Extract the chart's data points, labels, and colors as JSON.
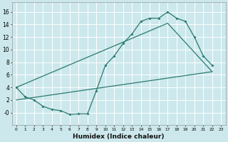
{
  "xlabel": "Humidex (Indice chaleur)",
  "bg_color": "#cce8ec",
  "grid_color": "#ffffff",
  "line_color": "#2a7a6e",
  "xlim": [
    -0.5,
    23.5
  ],
  "ylim": [
    -2.0,
    17.5
  ],
  "xticks": [
    0,
    1,
    2,
    3,
    4,
    5,
    6,
    7,
    8,
    9,
    10,
    11,
    12,
    13,
    14,
    15,
    16,
    17,
    18,
    19,
    20,
    21,
    22,
    23
  ],
  "yticks": [
    0,
    2,
    4,
    6,
    8,
    10,
    12,
    14,
    16
  ],
  "ytick_labels": [
    "-0",
    "2",
    "4",
    "6",
    "8",
    "10",
    "12",
    "14",
    "16"
  ],
  "line1_x": [
    0,
    1,
    2,
    3,
    4,
    5,
    6,
    7,
    8,
    9,
    10,
    11,
    12,
    13,
    14,
    15,
    16,
    17,
    18,
    19,
    20,
    21,
    22
  ],
  "line1_y": [
    4.0,
    2.5,
    2.0,
    1.0,
    0.5,
    0.3,
    -0.3,
    -0.2,
    -0.2,
    3.5,
    7.5,
    9.0,
    11.0,
    12.5,
    14.5,
    15.0,
    15.0,
    16.0,
    15.0,
    14.5,
    12.0,
    9.0,
    7.5
  ],
  "line2_x": [
    0,
    22
  ],
  "line2_y": [
    2.0,
    6.5
  ],
  "line3_x": [
    0,
    17,
    22
  ],
  "line3_y": [
    4.0,
    14.2,
    6.5
  ]
}
